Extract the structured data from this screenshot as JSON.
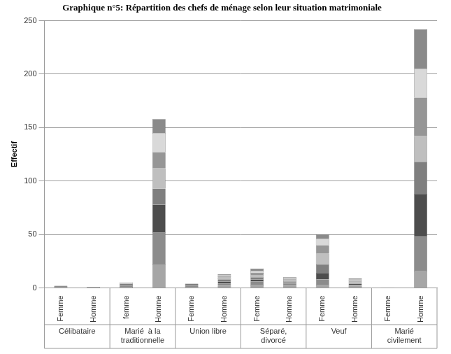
{
  "chart_data": {
    "type": "bar",
    "title": "Graphique n°5: Répartition des chefs de ménage selon leur situation matrimoniale",
    "y_label": "Effectif",
    "categories": [
      "Femme",
      "Homme",
      "femme",
      "Homme",
      "Femme",
      "Homme",
      "Femme",
      "Homme",
      "Femme",
      "Homme",
      "Femme",
      "Homme"
    ],
    "category_groups": [
      [
        "Célibataire"
      ],
      [
        "Marié  à la",
        "traditionnelle"
      ],
      [
        "Union libre"
      ],
      [
        "Séparé,",
        "divorcé"
      ],
      [
        "Veuf"
      ],
      [
        "Marié",
        "civilement"
      ]
    ],
    "stacked": true,
    "grid": true,
    "ylim": [
      0,
      250
    ],
    "yticks": [
      0,
      50,
      100,
      150,
      200,
      250
    ],
    "series": [
      {
        "color": "#a6a6a6",
        "values": [
          1,
          1,
          1,
          22,
          1,
          2,
          3,
          2,
          3,
          2,
          0.5,
          16
        ]
      },
      {
        "color": "#8c8c8c",
        "values": [
          1,
          0,
          1,
          30,
          1,
          2,
          3,
          2,
          5,
          1,
          0,
          32
        ]
      },
      {
        "color": "#4d4d4d",
        "values": [
          0,
          0,
          1,
          26,
          1,
          2,
          2,
          1,
          6,
          1,
          0,
          40
        ]
      },
      {
        "color": "#7f7f7f",
        "values": [
          0,
          0,
          1,
          15,
          1,
          2,
          2,
          1,
          8,
          1,
          0,
          30
        ]
      },
      {
        "color": "#bfbfbf",
        "values": [
          0,
          0,
          1,
          19,
          0,
          2,
          2,
          1,
          10,
          1,
          0,
          24
        ]
      },
      {
        "color": "#969696",
        "values": [
          0,
          0,
          0,
          15,
          0,
          1,
          2,
          1,
          8,
          1,
          0,
          36
        ]
      },
      {
        "color": "#d9d9d9",
        "values": [
          0,
          0,
          0,
          18,
          0,
          1,
          2,
          1,
          6,
          1,
          0,
          27
        ]
      },
      {
        "color": "#8a8a8a",
        "values": [
          0,
          0,
          0,
          13,
          0,
          1,
          2,
          1,
          4,
          1,
          0,
          37
        ]
      }
    ]
  }
}
